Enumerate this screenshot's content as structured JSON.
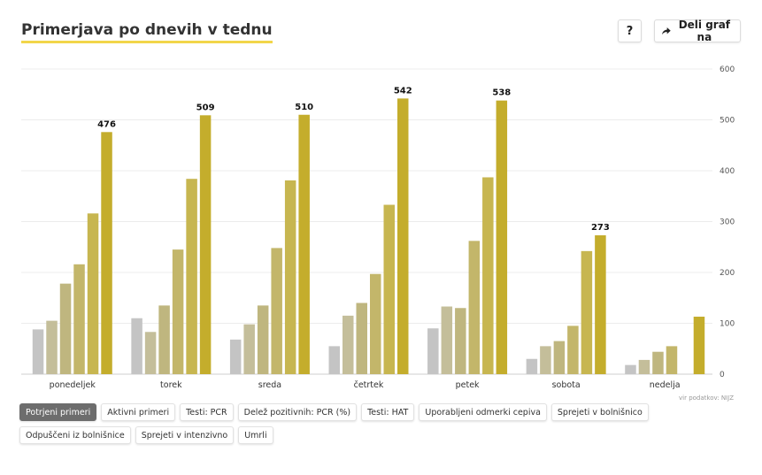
{
  "header": {
    "title": "Primerjava po dnevih v tednu",
    "help_label": "?",
    "share_label": "Deli graf na"
  },
  "source": "vir podatkov: NIJZ",
  "tabs": [
    {
      "label": "Potrjeni primeri",
      "active": true
    },
    {
      "label": "Aktivni primeri",
      "active": false
    },
    {
      "label": "Testi: PCR",
      "active": false
    },
    {
      "label": "Delež pozitivnih: PCR (%)",
      "active": false
    },
    {
      "label": "Testi: HAT",
      "active": false
    },
    {
      "label": "Uporabljeni odmerki cepiva",
      "active": false
    },
    {
      "label": "Sprejeti v bolnišnico",
      "active": false
    },
    {
      "label": "Odpuščeni iz bolnišnice",
      "active": false
    },
    {
      "label": "Sprejeti v intenzivno",
      "active": false
    },
    {
      "label": "Umrli",
      "active": false
    }
  ],
  "chart_data": {
    "type": "bar",
    "categories": [
      "ponedeljek",
      "torek",
      "sreda",
      "četrtek",
      "petek",
      "sobota",
      "nedelja"
    ],
    "ylim": [
      0,
      600
    ],
    "yticks": [
      0,
      100,
      200,
      300,
      400,
      500,
      600
    ],
    "grid": true,
    "colors": [
      "#c4c4c4",
      "#c4be9a",
      "#bfb67f",
      "#c3b66a",
      "#c7b650",
      "#c4ad2c"
    ],
    "series": [
      {
        "values": [
          88,
          110,
          68,
          55,
          90,
          30,
          18
        ]
      },
      {
        "values": [
          105,
          83,
          98,
          115,
          133,
          55,
          28
        ]
      },
      {
        "values": [
          178,
          135,
          135,
          140,
          130,
          65,
          44
        ]
      },
      {
        "values": [
          216,
          245,
          248,
          197,
          262,
          95,
          55
        ]
      },
      {
        "values": [
          316,
          384,
          381,
          333,
          387,
          242,
          0
        ]
      },
      {
        "values": [
          476,
          509,
          510,
          542,
          538,
          273,
          113
        ]
      }
    ],
    "value_labels": [
      "476",
      "509",
      "510",
      "542",
      "538",
      "273",
      ""
    ]
  }
}
